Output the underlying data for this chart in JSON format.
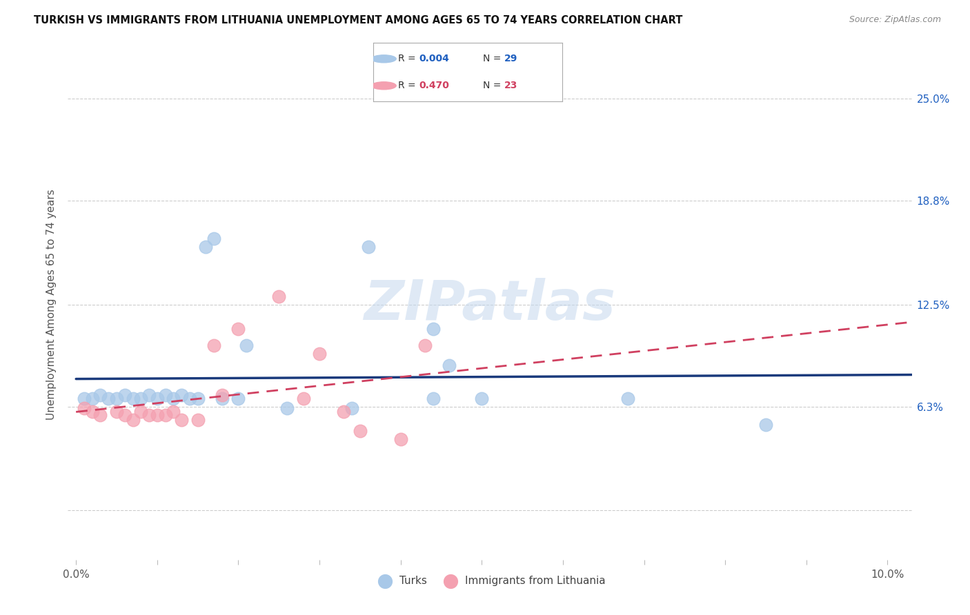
{
  "title": "TURKISH VS IMMIGRANTS FROM LITHUANIA UNEMPLOYMENT AMONG AGES 65 TO 74 YEARS CORRELATION CHART",
  "source": "Source: ZipAtlas.com",
  "ylabel": "Unemployment Among Ages 65 to 74 years",
  "xlim_min": -0.001,
  "xlim_max": 0.103,
  "ylim_min": -0.03,
  "ylim_max": 0.28,
  "ytick_vals": [
    0.0,
    0.063,
    0.125,
    0.188,
    0.25
  ],
  "ytick_labels": [
    "",
    "6.3%",
    "12.5%",
    "18.8%",
    "25.0%"
  ],
  "xtick_vals": [
    0.0,
    0.01,
    0.02,
    0.03,
    0.04,
    0.05,
    0.06,
    0.07,
    0.08,
    0.09,
    0.1
  ],
  "xtick_labels": [
    "0.0%",
    "",
    "",
    "",
    "",
    "",
    "",
    "",
    "",
    "",
    "10.0%"
  ],
  "blue_color": "#a8c8e8",
  "pink_color": "#f4a0b0",
  "line_blue": "#1a3a7c",
  "line_pink": "#d04060",
  "legend_r1_label": "R = ",
  "legend_r1_val": "0.004",
  "legend_n1_label": "N = ",
  "legend_n1_val": "29",
  "legend_r2_label": "R = ",
  "legend_r2_val": "0.470",
  "legend_n2_label": "N = ",
  "legend_n2_val": "23",
  "legend_val_color_blue": "#2060c0",
  "legend_val_color_pink": "#d04060",
  "watermark_text": "ZIPatlas",
  "watermark_color": "#c5d8ee",
  "background_color": "#ffffff",
  "turks_x": [
    0.001,
    0.002,
    0.003,
    0.004,
    0.005,
    0.006,
    0.007,
    0.008,
    0.009,
    0.01,
    0.011,
    0.012,
    0.013,
    0.014,
    0.015,
    0.016,
    0.017,
    0.018,
    0.02,
    0.021,
    0.026,
    0.034,
    0.036,
    0.044,
    0.044,
    0.046,
    0.05,
    0.068,
    0.085
  ],
  "turks_y": [
    0.068,
    0.068,
    0.07,
    0.068,
    0.068,
    0.07,
    0.068,
    0.068,
    0.07,
    0.068,
    0.07,
    0.068,
    0.07,
    0.068,
    0.068,
    0.16,
    0.165,
    0.068,
    0.068,
    0.1,
    0.062,
    0.062,
    0.16,
    0.068,
    0.11,
    0.088,
    0.068,
    0.068,
    0.052
  ],
  "lithuania_x": [
    0.001,
    0.002,
    0.003,
    0.005,
    0.006,
    0.007,
    0.008,
    0.009,
    0.01,
    0.011,
    0.012,
    0.013,
    0.015,
    0.017,
    0.018,
    0.02,
    0.025,
    0.028,
    0.03,
    0.033,
    0.035,
    0.04,
    0.043
  ],
  "lithuania_y": [
    0.062,
    0.06,
    0.058,
    0.06,
    0.058,
    0.055,
    0.06,
    0.058,
    0.058,
    0.058,
    0.06,
    0.055,
    0.055,
    0.1,
    0.07,
    0.11,
    0.13,
    0.068,
    0.095,
    0.06,
    0.048,
    0.043,
    0.1
  ]
}
